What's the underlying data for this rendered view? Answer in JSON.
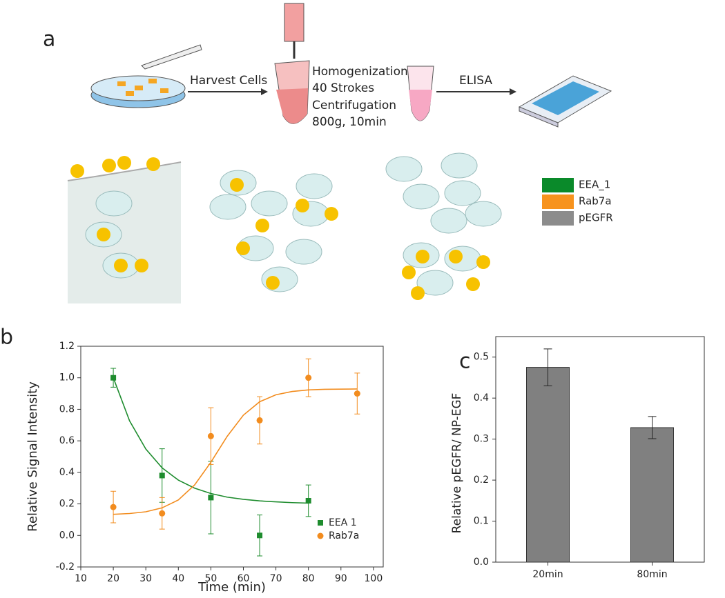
{
  "panels": [
    "a",
    "b",
    "c"
  ],
  "diagram": {
    "steps": [
      "Harvest Cells",
      "Homogenization",
      "40 Strokes",
      "Centrifugation",
      "800g, 10min",
      "ELISA"
    ],
    "legend": [
      {
        "name": "EEA_1",
        "color": "#0a8a2a"
      },
      {
        "name": "Rab7a",
        "color": "#f7931e"
      },
      {
        "name": "pEGFR",
        "color": "#8c8c8c"
      }
    ]
  },
  "chart_data": [
    {
      "type": "scatter",
      "xlabel": "Time (min)",
      "ylabel": "Relative Signal Intensity",
      "xlim": [
        10,
        103
      ],
      "xticks": [
        10,
        20,
        30,
        40,
        50,
        60,
        70,
        80,
        90,
        100
      ],
      "ylim": [
        -0.2,
        1.2
      ],
      "yticks": [
        -0.2,
        {
          "value": 0.0,
          "label": "0.0"
        },
        0.2,
        0.4,
        0.6,
        0.8,
        {
          "value": 1.0,
          "label": "1.0"
        },
        1.2
      ],
      "legend": "lower right",
      "series": [
        {
          "name": "EEA 1",
          "color": "#1e8c2e",
          "marker": "square",
          "x": [
            20,
            35,
            50,
            65,
            80
          ],
          "values": [
            1.0,
            0.38,
            0.24,
            0.0,
            0.22
          ],
          "errors": [
            0.06,
            0.17,
            0.23,
            0.13,
            0.1
          ],
          "fit": {
            "x": [
              20,
              25,
              30,
              35,
              40,
              45,
              50,
              55,
              60,
              65,
              70,
              75,
              80
            ],
            "values": [
              1.0,
              0.727,
              0.548,
              0.429,
              0.351,
              0.3,
              0.266,
              0.243,
              0.229,
              0.219,
              0.213,
              0.208,
              0.205
            ]
          }
        },
        {
          "name": "Rab7a",
          "color": "#f28c1e",
          "marker": "circle",
          "x": [
            20,
            35,
            50,
            65,
            80,
            95
          ],
          "values": [
            0.18,
            0.14,
            0.63,
            0.73,
            1.0,
            0.9
          ],
          "errors": [
            0.1,
            0.1,
            0.18,
            0.15,
            0.12,
            0.13
          ],
          "fit": {
            "x": [
              20,
              25,
              30,
              35,
              40,
              45,
              50,
              55,
              60,
              65,
              70,
              75,
              80,
              85,
              90,
              95
            ],
            "values": [
              0.134,
              0.139,
              0.15,
              0.175,
              0.225,
              0.32,
              0.464,
              0.628,
              0.763,
              0.848,
              0.892,
              0.913,
              0.923,
              0.927,
              0.928,
              0.929
            ]
          }
        }
      ]
    },
    {
      "type": "bar",
      "ylabel": "Relative pEGFR/ NP-EGF",
      "categories": [
        "20min",
        "80min"
      ],
      "values": [
        0.475,
        0.328
      ],
      "errors": [
        0.045,
        0.027
      ],
      "color": "#808080",
      "ylim": [
        0,
        0.55
      ],
      "yticks": [
        {
          "value": 0.0,
          "label": "0.0"
        },
        0.1,
        0.2,
        0.3,
        0.4,
        0.5
      ]
    }
  ]
}
